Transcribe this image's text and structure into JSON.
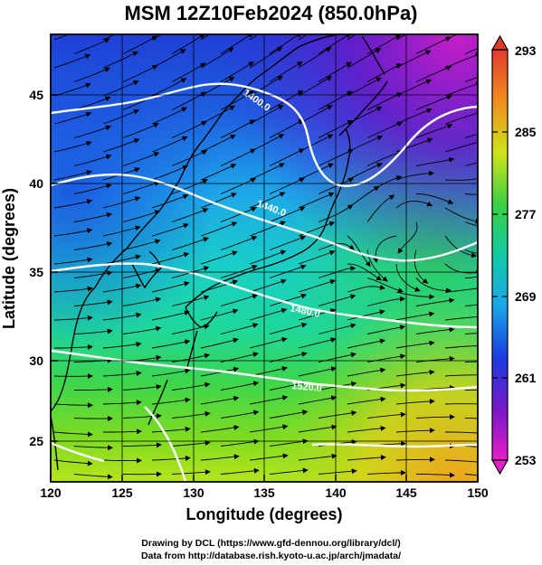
{
  "title": "MSM 12Z10Feb2024 (850.0hPa)",
  "xlabel": "Longitude (degrees)",
  "ylabel": "Latitude  (degrees)",
  "x_ticks": [
    "120",
    "125",
    "130",
    "135",
    "140",
    "145",
    "150"
  ],
  "y_ticks": [
    "25",
    "30",
    "35",
    "40",
    "45"
  ],
  "colorbar": {
    "labels": [
      "293",
      "285",
      "277",
      "269",
      "261",
      "253"
    ],
    "range": [
      253,
      293
    ]
  },
  "contours": [
    {
      "label": "1400.0"
    },
    {
      "label": "1440.0"
    },
    {
      "label": "1480.0"
    },
    {
      "label": "1520.0"
    }
  ],
  "credits": {
    "line1": "Drawing by DCL (https://www.gfd-dennou.org/library/dcl/)",
    "line2": "Data from http://database.rish.kyoto-u.ac.jp/arch/jmadata/"
  },
  "chart_data": {
    "type": "heatmap",
    "title": "MSM 12Z10Feb2024 (850.0hPa)",
    "xlabel": "Longitude (degrees)",
    "ylabel": "Latitude  (degrees)",
    "xlim": [
      120,
      150
    ],
    "ylim": [
      22.4,
      47.6
    ],
    "colorbar_range": [
      253,
      293
    ],
    "colorbar_ticks": [
      253,
      261,
      269,
      277,
      285,
      293
    ],
    "contour_levels": [
      1400.0,
      1440.0,
      1480.0,
      1520.0
    ],
    "overlays": [
      "streamlines",
      "coastlines",
      "lat-lon grid"
    ]
  }
}
